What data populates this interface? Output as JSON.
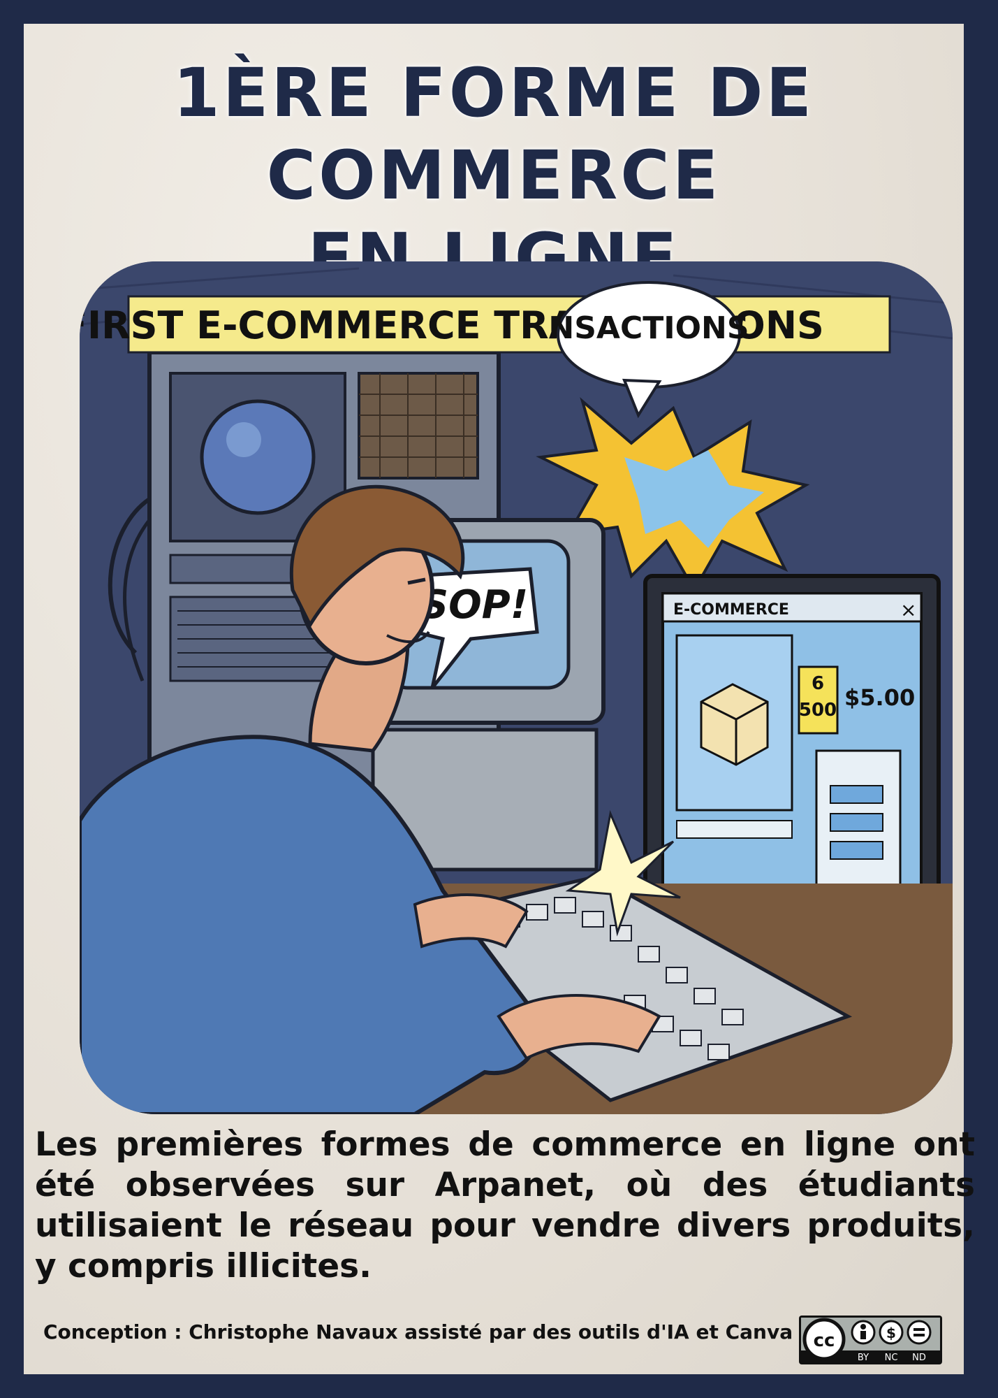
{
  "title": {
    "line1": "1ère forme de commerce",
    "line2": "en ligne"
  },
  "comic": {
    "banner": "FIRST E-COMMERCE TRANSACTIONS",
    "bubble": "SOP!",
    "screen_title": "E-COMMERCE",
    "tag_number": "6",
    "tag_value": "500",
    "price": "$5.00"
  },
  "body": "Les premières formes de commerce en ligne ont été observées sur Arpanet, où des étudiants utilisaient le réseau pour vendre divers produits, y compris illicites.",
  "footer": "Conception : Christophe Navaux  assisté par des outils d'IA et Canva",
  "license": {
    "cc": "cc",
    "labels": [
      "BY",
      "NC",
      "ND"
    ]
  },
  "colors": {
    "frame": "#1f2a48",
    "paper": "#e9e4dc",
    "banner": "#f5ea8c",
    "screen": "#9fc8ea"
  }
}
